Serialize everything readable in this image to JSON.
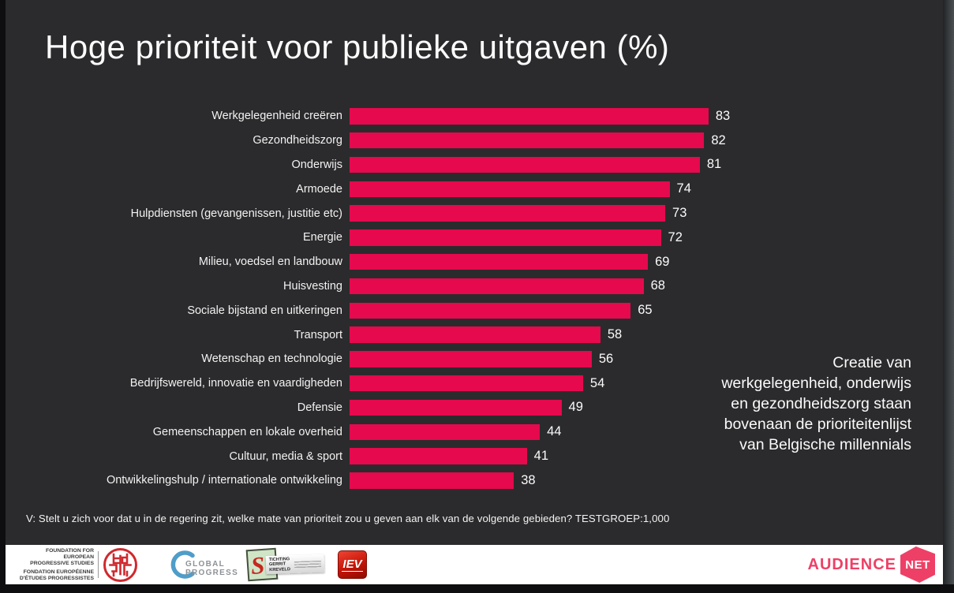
{
  "slide": {
    "title": "Hoge prioriteit voor publieke uitgaven (%)",
    "annotation": "Creatie van\nwerkgelegenheid, onderwijs\nen gezondheidszorg staan\nbovenaan de prioriteitenlijst\nvan Belgische millennials",
    "footnote": "V: Stelt u zich voor dat u in de regering zit, welke mate van prioriteit zou u geven aan elk van de volgende gebieden? TESTGROEP:1,000"
  },
  "chart_data": {
    "type": "bar",
    "orientation": "horizontal",
    "title": "Hoge prioriteit voor publieke uitgaven (%)",
    "categories": [
      "Werkgelegenheid creëren",
      "Gezondheidszorg",
      "Onderwijs",
      "Armoede",
      "Hulpdiensten (gevangenissen, justitie etc)",
      "Energie",
      "Milieu, voedsel en landbouw",
      "Huisvesting",
      "Sociale bijstand en uitkeringen",
      "Transport",
      "Wetenschap en technologie",
      "Bedrijfswereld, innovatie en vaardigheden",
      "Defensie",
      "Gemeenschappen en lokale overheid",
      "Cultuur, media & sport",
      "Ontwikkelingshulp / internationale ontwikkeling"
    ],
    "values": [
      83,
      82,
      81,
      74,
      73,
      72,
      69,
      68,
      65,
      58,
      56,
      54,
      49,
      44,
      41,
      38
    ],
    "xlim": [
      0,
      100
    ],
    "grid": false,
    "value_labels": true,
    "legend": null,
    "bar_color": "#e6094d"
  },
  "footer": {
    "feps": {
      "text_en": "FOUNDATION FOR EUROPEAN\nPROGRESSIVE STUDIES",
      "text_fr": "FONDATION EUROPÉENNE\nD'ÉTUDES PROGRESSISTES"
    },
    "global_progress": {
      "label": "GLOBAL\nPROGRESS"
    },
    "gerrit_kreveld": {
      "initial": "S",
      "label": "TICHTING\nGERRIT\nKREVELD"
    },
    "iev": {
      "label": "IEV"
    },
    "audiencenet": {
      "wordmark": "AUDIENCE",
      "badge": "NET"
    }
  },
  "colors": {
    "background": "#2b2b2d",
    "bar": "#e6094d",
    "text": "#f2f2f2",
    "footer_bg": "#ffffff",
    "feps_red": "#d0282e",
    "global_blue": "#4f9dc9",
    "kreveld_green": "#cfe5c6",
    "iev_red": "#c41405",
    "audiencenet_pink": "#ee4066"
  }
}
